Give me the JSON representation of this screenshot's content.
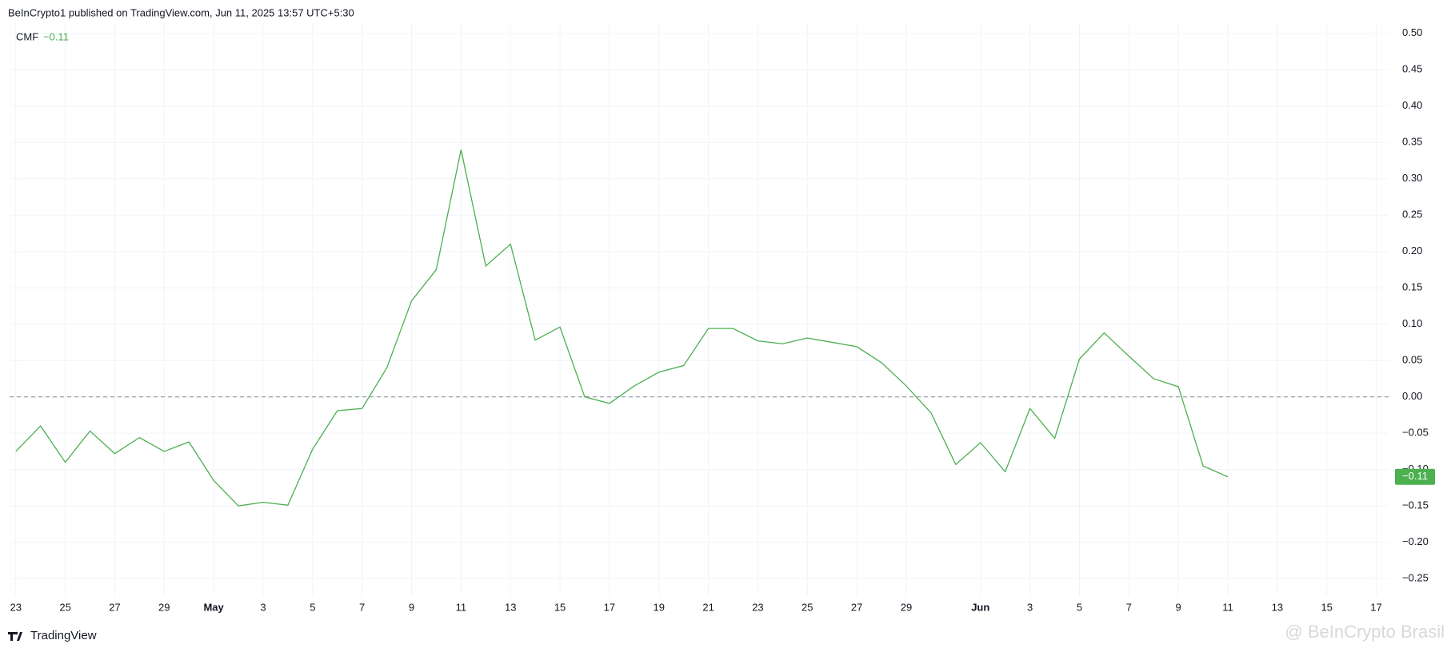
{
  "header": "BeInCrypto1 published on TradingView.com, Jun 11, 2025 13:57 UTC+5:30",
  "footer": "TradingView",
  "watermark": "@ BeInCrypto Brasil",
  "chart_data": {
    "type": "line",
    "x": [
      "2025-04-23",
      "2025-04-24",
      "2025-04-25",
      "2025-04-26",
      "2025-04-27",
      "2025-04-28",
      "2025-04-29",
      "2025-04-30",
      "2025-05-01",
      "2025-05-02",
      "2025-05-03",
      "2025-05-04",
      "2025-05-05",
      "2025-05-06",
      "2025-05-07",
      "2025-05-08",
      "2025-05-09",
      "2025-05-10",
      "2025-05-11",
      "2025-05-12",
      "2025-05-13",
      "2025-05-14",
      "2025-05-15",
      "2025-05-16",
      "2025-05-17",
      "2025-05-18",
      "2025-05-19",
      "2025-05-20",
      "2025-05-21",
      "2025-05-22",
      "2025-05-23",
      "2025-05-24",
      "2025-05-25",
      "2025-05-26",
      "2025-05-27",
      "2025-05-28",
      "2025-05-29",
      "2025-05-30",
      "2025-05-31",
      "2025-06-01",
      "2025-06-02",
      "2025-06-03",
      "2025-06-04",
      "2025-06-05",
      "2025-06-06",
      "2025-06-07",
      "2025-06-08",
      "2025-06-09",
      "2025-06-10",
      "2025-06-11"
    ],
    "series": [
      {
        "name": "CMF",
        "color": "#4caf50",
        "last_value_label": "−0.11",
        "values": [
          -0.075,
          -0.04,
          -0.09,
          -0.047,
          -0.078,
          -0.056,
          -0.075,
          -0.062,
          -0.115,
          -0.15,
          -0.145,
          -0.149,
          -0.072,
          -0.019,
          -0.016,
          0.04,
          0.132,
          0.175,
          0.34,
          0.18,
          0.21,
          0.078,
          0.096,
          0.0,
          -0.009,
          0.015,
          0.034,
          0.043,
          0.094,
          0.094,
          0.077,
          0.073,
          0.081,
          0.075,
          0.069,
          0.047,
          0.015,
          -0.022,
          -0.093,
          -0.063,
          -0.103,
          -0.016,
          -0.057,
          0.052,
          0.088,
          0.056,
          0.025,
          0.014,
          -0.095,
          -0.11
        ]
      }
    ],
    "baseline": 0,
    "xlim": [
      "2025-04-22T18:00Z",
      "2025-06-17T12:00Z"
    ],
    "xticks": [
      {
        "value": "2025-04-23",
        "label": "23"
      },
      {
        "value": "2025-04-25",
        "label": "25"
      },
      {
        "value": "2025-04-27",
        "label": "27"
      },
      {
        "value": "2025-04-29",
        "label": "29"
      },
      {
        "value": "2025-05-01",
        "label": "May"
      },
      {
        "value": "2025-05-03",
        "label": "3"
      },
      {
        "value": "2025-05-05",
        "label": "5"
      },
      {
        "value": "2025-05-07",
        "label": "7"
      },
      {
        "value": "2025-05-09",
        "label": "9"
      },
      {
        "value": "2025-05-11",
        "label": "11"
      },
      {
        "value": "2025-05-13",
        "label": "13"
      },
      {
        "value": "2025-05-15",
        "label": "15"
      },
      {
        "value": "2025-05-17",
        "label": "17"
      },
      {
        "value": "2025-05-19",
        "label": "19"
      },
      {
        "value": "2025-05-21",
        "label": "21"
      },
      {
        "value": "2025-05-23",
        "label": "23"
      },
      {
        "value": "2025-05-25",
        "label": "25"
      },
      {
        "value": "2025-05-27",
        "label": "27"
      },
      {
        "value": "2025-05-29",
        "label": "29"
      },
      {
        "value": "2025-06-01",
        "label": "Jun"
      },
      {
        "value": "2025-06-03",
        "label": "3"
      },
      {
        "value": "2025-06-05",
        "label": "5"
      },
      {
        "value": "2025-06-07",
        "label": "7"
      },
      {
        "value": "2025-06-09",
        "label": "9"
      },
      {
        "value": "2025-06-11",
        "label": "11"
      },
      {
        "value": "2025-06-13",
        "label": "13"
      },
      {
        "value": "2025-06-15",
        "label": "15"
      },
      {
        "value": "2025-06-17",
        "label": "17"
      }
    ],
    "ylim": [
      -0.274,
      0.514
    ],
    "yticks": [
      {
        "value": 0.5,
        "label": "0.50"
      },
      {
        "value": 0.45,
        "label": "0.45"
      },
      {
        "value": 0.4,
        "label": "0.40"
      },
      {
        "value": 0.35,
        "label": "0.35"
      },
      {
        "value": 0.3,
        "label": "0.30"
      },
      {
        "value": 0.25,
        "label": "0.25"
      },
      {
        "value": 0.2,
        "label": "0.20"
      },
      {
        "value": 0.15,
        "label": "0.15"
      },
      {
        "value": 0.1,
        "label": "0.10"
      },
      {
        "value": 0.05,
        "label": "0.05"
      },
      {
        "value": 0,
        "label": "0.00"
      },
      {
        "value": -0.05,
        "label": "−0.05"
      },
      {
        "value": -0.1,
        "label": "−0.10"
      },
      {
        "value": -0.15,
        "label": "−0.15"
      },
      {
        "value": -0.2,
        "label": "−0.20"
      },
      {
        "value": -0.25,
        "label": "−0.25"
      }
    ],
    "grid": true
  }
}
